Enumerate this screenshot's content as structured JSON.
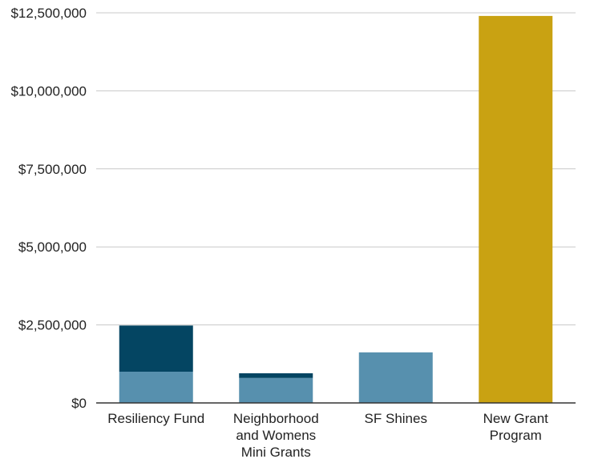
{
  "chart_data": {
    "type": "bar",
    "stacked": true,
    "title": "",
    "xlabel": "",
    "ylabel": "",
    "ylim": [
      0,
      12500000
    ],
    "yticks": [
      0,
      2500000,
      5000000,
      7500000,
      10000000,
      12500000
    ],
    "ytick_labels": [
      "$0",
      "$2,500,000",
      "$5,000,000",
      "$7,500,000",
      "$10,000,000",
      "$12,500,000"
    ],
    "grid": true,
    "legend": "none",
    "categories": [
      [
        "Resiliency Fund"
      ],
      [
        "Neighborhood",
        "and Womens",
        "Mini Grants"
      ],
      [
        "SF Shines"
      ],
      [
        "New Grant",
        "Program"
      ]
    ],
    "segments": [
      [
        {
          "value": 1000000,
          "color": "#5790AE"
        },
        {
          "value": 1480000,
          "color": "#044562"
        }
      ],
      [
        {
          "value": 800000,
          "color": "#5790AE"
        },
        {
          "value": 150000,
          "color": "#044562"
        }
      ],
      [
        {
          "value": 1620000,
          "color": "#5790AE"
        }
      ],
      [
        {
          "value": 12400000,
          "color": "#C9A212"
        }
      ]
    ]
  },
  "colors": {
    "light_blue": "#5790AE",
    "dark_blue": "#044562",
    "gold": "#C9A212",
    "grid": "#C8C8C8",
    "axis": "#333333"
  }
}
